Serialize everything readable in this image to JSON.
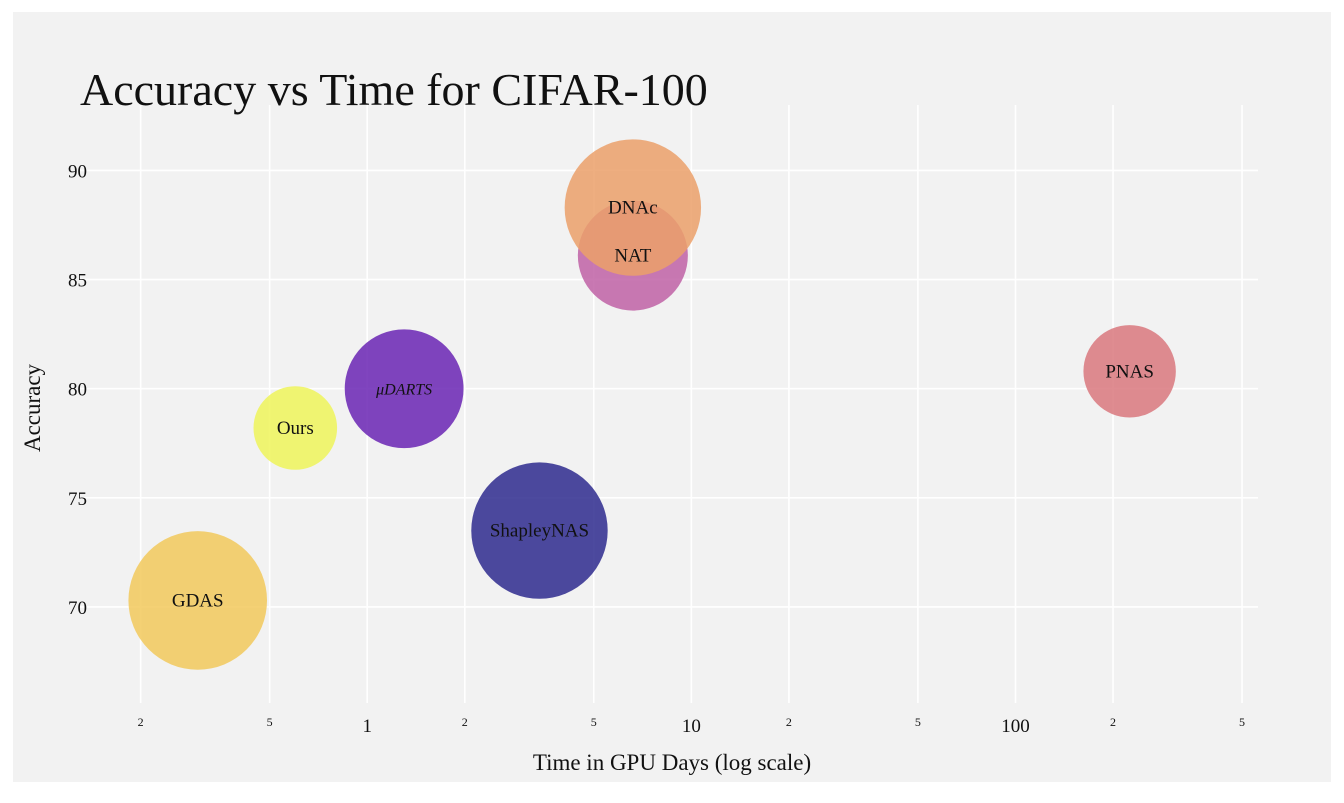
{
  "chart_data": {
    "type": "scatter",
    "subtype": "bubble",
    "title": "Accuracy vs Time for CIFAR-100",
    "xlabel": "Time in GPU Days (log scale)",
    "ylabel": "Accuracy",
    "x_scale": "log",
    "xlim": [
      0.13,
      560
    ],
    "ylim": [
      65.6,
      93
    ],
    "y_ticks": [
      {
        "value": 70,
        "label": "70"
      },
      {
        "value": 75,
        "label": "75"
      },
      {
        "value": 80,
        "label": "80"
      },
      {
        "value": 85,
        "label": "85"
      },
      {
        "value": 90,
        "label": "90"
      }
    ],
    "x_ticks": [
      {
        "value": 0.2,
        "label": "2",
        "minor": true
      },
      {
        "value": 0.5,
        "label": "5",
        "minor": true
      },
      {
        "value": 1,
        "label": "1",
        "minor": false
      },
      {
        "value": 2,
        "label": "2",
        "minor": true
      },
      {
        "value": 5,
        "label": "5",
        "minor": true
      },
      {
        "value": 10,
        "label": "10",
        "minor": false
      },
      {
        "value": 20,
        "label": "2",
        "minor": true
      },
      {
        "value": 50,
        "label": "5",
        "minor": true
      },
      {
        "value": 100,
        "label": "100",
        "minor": false
      },
      {
        "value": 200,
        "label": "2",
        "minor": true
      },
      {
        "value": 500,
        "label": "5",
        "minor": true
      }
    ],
    "grid": true,
    "background_color": "#f2f2f2",
    "legend": "none",
    "points": [
      {
        "label": "GDAS",
        "x": 0.3,
        "y": 70.3,
        "size": 3.15,
        "color": "#f2c95c",
        "opacity": 0.85,
        "italic": false
      },
      {
        "label": "Ours",
        "x": 0.6,
        "y": 78.2,
        "size": 1.9,
        "color": "#eef55a",
        "opacity": 0.85,
        "italic": false
      },
      {
        "label": "μDARTS",
        "x": 1.3,
        "y": 80.0,
        "size": 2.7,
        "color": "#6a25b4",
        "opacity": 0.85,
        "italic": true
      },
      {
        "label": "ShapleyNAS",
        "x": 3.4,
        "y": 73.5,
        "size": 3.1,
        "color": "#2e2a8e",
        "opacity": 0.85,
        "italic": false
      },
      {
        "label": "NAT",
        "x": 6.6,
        "y": 86.1,
        "size": 2.5,
        "color": "#bb58a0",
        "opacity": 0.8,
        "italic": false
      },
      {
        "label": "DNAc",
        "x": 6.6,
        "y": 88.3,
        "size": 3.1,
        "color": "#eba06a",
        "opacity": 0.85,
        "italic": false
      },
      {
        "label": "PNAS",
        "x": 225,
        "y": 80.8,
        "size": 2.1,
        "color": "#d9787e",
        "opacity": 0.85,
        "italic": false
      }
    ]
  }
}
